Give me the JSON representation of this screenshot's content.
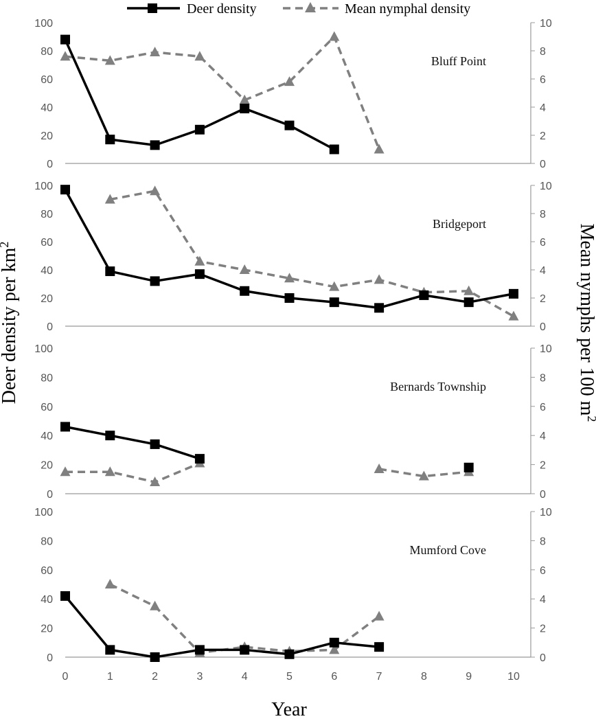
{
  "chart_data": {
    "type": "line",
    "legend": {
      "placement": "top-center",
      "entries": [
        {
          "name": "Deer density",
          "color": "#000000",
          "marker": "square",
          "dash": "solid"
        },
        {
          "name": "Mean nymphal density",
          "color": "#808080",
          "marker": "triangle",
          "dash": "dashed"
        }
      ]
    },
    "xlabel": "Year",
    "ylabel_left": "Deer density per km²",
    "ylabel_right": "Mean nymphs per 100 m²",
    "x_ticks": [
      0,
      1,
      2,
      3,
      4,
      5,
      6,
      7,
      8,
      9,
      10
    ],
    "xlim": [
      0,
      10
    ],
    "ylim_left": [
      0,
      100
    ],
    "ylim_right": [
      0,
      10
    ],
    "y_ticks_left": [
      0,
      20,
      40,
      60,
      80,
      100
    ],
    "y_ticks_right": [
      0,
      2,
      4,
      6,
      8,
      10
    ],
    "panels": [
      {
        "site": "Bluff Point",
        "deer_density": {
          "x": [
            0,
            1,
            2,
            3,
            4,
            5,
            6
          ],
          "y": [
            88,
            17,
            13,
            24,
            39,
            27,
            10
          ]
        },
        "nymphal_density": {
          "x": [
            0,
            1,
            2,
            3,
            4,
            5,
            6,
            7
          ],
          "y": [
            7.6,
            7.3,
            7.9,
            7.6,
            4.5,
            5.8,
            9.0,
            1.0
          ]
        }
      },
      {
        "site": "Bridgeport",
        "deer_density": {
          "x": [
            0,
            1,
            2,
            3,
            4,
            5,
            6,
            7,
            8,
            9,
            10
          ],
          "y": [
            97,
            39,
            32,
            37,
            25,
            20,
            17,
            13,
            22,
            17,
            23
          ]
        },
        "nymphal_density": {
          "x": [
            1,
            2,
            3,
            4,
            5,
            6,
            7,
            8,
            9,
            10
          ],
          "y": [
            9.0,
            9.6,
            4.6,
            4.0,
            3.4,
            2.8,
            3.3,
            2.4,
            2.5,
            0.7
          ]
        }
      },
      {
        "site": "Bernards Township",
        "deer_density": {
          "x": [
            0,
            1,
            2,
            3,
            9
          ],
          "y": [
            46,
            40,
            34,
            24,
            18
          ],
          "segments": [
            [
              0,
              3
            ],
            [
              4,
              4
            ]
          ]
        },
        "nymphal_density": {
          "x": [
            0,
            1,
            2,
            3,
            7,
            8,
            9
          ],
          "y": [
            1.5,
            1.5,
            0.8,
            2.1,
            1.7,
            1.2,
            1.5
          ],
          "segments": [
            [
              0,
              3
            ],
            [
              4,
              6
            ]
          ]
        }
      },
      {
        "site": "Mumford Cove",
        "deer_density": {
          "x": [
            0,
            1,
            2,
            3,
            4,
            5,
            6,
            7
          ],
          "y": [
            42,
            5,
            0,
            5,
            5,
            2,
            10,
            7
          ]
        },
        "nymphal_density": {
          "x": [
            1,
            2,
            3,
            4,
            5,
            6,
            7
          ],
          "y": [
            5.0,
            3.5,
            0.3,
            0.7,
            0.4,
            0.5,
            2.8
          ]
        }
      }
    ]
  }
}
